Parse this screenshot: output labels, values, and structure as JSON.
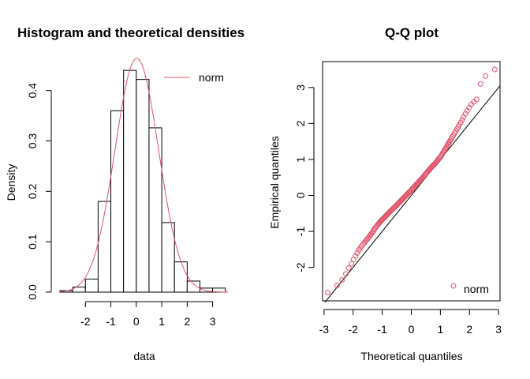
{
  "chart_data": [
    {
      "type": "histogram",
      "title": "Histogram and theoretical densities",
      "xlabel": "data",
      "ylabel": "Density",
      "xlim": [
        -3,
        3.6
      ],
      "ylim": [
        0,
        0.47
      ],
      "xticks": [
        -2,
        -1,
        0,
        1,
        2,
        3
      ],
      "xtick_labels": [
        "-2",
        "-1",
        "0",
        "1",
        "2",
        "3"
      ],
      "yticks": [
        0.0,
        0.1,
        0.2,
        0.3,
        0.4
      ],
      "ytick_labels": [
        "0.0",
        "0.1",
        "0.2",
        "0.3",
        "0.4"
      ],
      "bin_edges": [
        -3.0,
        -2.5,
        -2.0,
        -1.5,
        -1.0,
        -0.5,
        0.0,
        0.5,
        1.0,
        1.5,
        2.0,
        2.5,
        3.0,
        3.5
      ],
      "densities": [
        0.003,
        0.01,
        0.026,
        0.18,
        0.36,
        0.44,
        0.422,
        0.326,
        0.138,
        0.06,
        0.022,
        0.008,
        0.008
      ],
      "density_curve": {
        "name": "norm",
        "dist": "normal",
        "mean": 0.02,
        "sd": 0.86,
        "color": "#DF536B"
      },
      "legend": {
        "entries": [
          "norm"
        ],
        "position": "top-right",
        "color": "#DF536B"
      }
    },
    {
      "type": "scatter",
      "title": "Q-Q plot",
      "xlabel": "Theoretical quantiles",
      "ylabel": "Empirical quantiles",
      "xlim": [
        -3.05,
        3.05
      ],
      "ylim": [
        -2.93,
        3.72
      ],
      "xticks": [
        -3,
        -2,
        -1,
        0,
        1,
        2,
        3
      ],
      "xtick_labels": [
        "-3",
        "-2",
        "-1",
        "0",
        "1",
        "2",
        "3"
      ],
      "yticks": [
        -2,
        -1,
        0,
        1,
        2,
        3
      ],
      "ytick_labels": [
        "-2",
        "-1",
        "0",
        "1",
        "2",
        "3"
      ],
      "series": [
        {
          "name": "norm",
          "color": "#DF536B",
          "x": [
            -2.87,
            -2.55,
            -2.38,
            -2.25,
            -2.15,
            -2.06,
            -1.99,
            -1.92,
            -1.86,
            -1.8,
            -1.75,
            -1.7,
            -1.65,
            -1.61,
            -1.57,
            -1.53,
            -1.49,
            -1.45,
            -1.41,
            -1.38,
            -1.34,
            -1.31,
            -1.28,
            -1.25,
            -1.22,
            -1.19,
            -1.16,
            -1.13,
            -1.1,
            -1.07,
            -1.04,
            -1.01,
            -0.98,
            -0.95,
            -0.92,
            -0.89,
            -0.86,
            -0.83,
            -0.8,
            -0.77,
            -0.74,
            -0.71,
            -0.68,
            -0.65,
            -0.62,
            -0.59,
            -0.56,
            -0.53,
            -0.5,
            -0.47,
            -0.44,
            -0.41,
            -0.38,
            -0.35,
            -0.32,
            -0.29,
            -0.26,
            -0.23,
            -0.2,
            -0.17,
            -0.14,
            -0.11,
            -0.08,
            -0.05,
            -0.02,
            0.02,
            0.05,
            0.08,
            0.11,
            0.14,
            0.17,
            0.2,
            0.23,
            0.26,
            0.29,
            0.32,
            0.35,
            0.38,
            0.41,
            0.44,
            0.47,
            0.5,
            0.53,
            0.56,
            0.59,
            0.62,
            0.65,
            0.68,
            0.71,
            0.74,
            0.77,
            0.8,
            0.83,
            0.86,
            0.89,
            0.92,
            0.95,
            0.98,
            1.01,
            1.04,
            1.07,
            1.1,
            1.13,
            1.16,
            1.19,
            1.22,
            1.25,
            1.28,
            1.31,
            1.34,
            1.38,
            1.41,
            1.45,
            1.49,
            1.53,
            1.57,
            1.61,
            1.65,
            1.7,
            1.75,
            1.8,
            1.86,
            1.92,
            1.99,
            2.06,
            2.15,
            2.25,
            2.38,
            2.55,
            2.87
          ],
          "y": [
            -2.7,
            -2.5,
            -2.35,
            -2.18,
            -2.02,
            -1.9,
            -1.78,
            -1.68,
            -1.6,
            -1.52,
            -1.46,
            -1.4,
            -1.35,
            -1.31,
            -1.27,
            -1.23,
            -1.19,
            -1.15,
            -1.11,
            -1.07,
            -1.03,
            -0.99,
            -0.95,
            -0.92,
            -0.88,
            -0.85,
            -0.82,
            -0.79,
            -0.76,
            -0.73,
            -0.71,
            -0.68,
            -0.66,
            -0.63,
            -0.61,
            -0.58,
            -0.56,
            -0.53,
            -0.51,
            -0.48,
            -0.46,
            -0.43,
            -0.41,
            -0.39,
            -0.36,
            -0.34,
            -0.32,
            -0.29,
            -0.27,
            -0.24,
            -0.22,
            -0.19,
            -0.17,
            -0.14,
            -0.12,
            -0.09,
            -0.07,
            -0.04,
            -0.02,
            0.01,
            0.03,
            0.06,
            0.08,
            0.11,
            0.13,
            0.17,
            0.19,
            0.22,
            0.25,
            0.27,
            0.3,
            0.33,
            0.35,
            0.38,
            0.41,
            0.43,
            0.46,
            0.49,
            0.51,
            0.54,
            0.57,
            0.6,
            0.63,
            0.66,
            0.69,
            0.71,
            0.74,
            0.77,
            0.8,
            0.82,
            0.85,
            0.87,
            0.9,
            0.93,
            0.96,
            0.99,
            1.02,
            1.05,
            1.08,
            1.12,
            1.16,
            1.2,
            1.24,
            1.28,
            1.32,
            1.36,
            1.41,
            1.45,
            1.49,
            1.53,
            1.58,
            1.63,
            1.68,
            1.73,
            1.78,
            1.84,
            1.9,
            1.96,
            2.03,
            2.1,
            2.18,
            2.27,
            2.35,
            2.44,
            2.53,
            2.6,
            2.67,
            3.1,
            3.32,
            3.5
          ]
        }
      ],
      "reference_line": {
        "slope": 1.0,
        "intercept": 0.0,
        "color": "#000000"
      },
      "legend": {
        "entries": [
          "norm"
        ],
        "position": "bottom-right",
        "color": "#DF536B"
      }
    }
  ]
}
